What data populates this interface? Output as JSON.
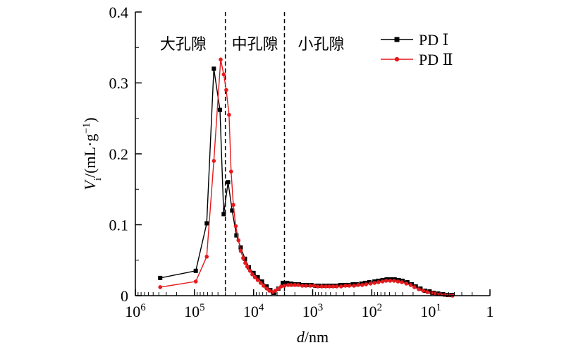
{
  "chart_data": {
    "type": "line",
    "x_scale": "log-reversed",
    "xlim": [
      1000000,
      1
    ],
    "ylim": [
      0,
      0.4
    ],
    "x_ticks": [
      {
        "label_base": "10",
        "label_exp": "6"
      },
      {
        "label_base": "10",
        "label_exp": "5"
      },
      {
        "label_base": "10",
        "label_exp": "4"
      },
      {
        "label_base": "10",
        "label_exp": "3"
      },
      {
        "label_base": "10",
        "label_exp": "2"
      },
      {
        "label_base": "10",
        "label_exp": "1"
      },
      {
        "label_base": "1",
        "label_exp": ""
      }
    ],
    "y_ticks": [
      "0",
      "0.1",
      "0.2",
      "0.3",
      "0.4"
    ],
    "xlabel": {
      "italic": "d",
      "rest": "/nm"
    },
    "ylabel": {
      "italic": "V",
      "sub": "i",
      "rest": "/(mL·g",
      "sup": "−1",
      "close": ")"
    },
    "boundaries": [
      30000,
      3000
    ],
    "regions": [
      "大孔隙",
      "中孔隙",
      "小孔隙"
    ],
    "series": [
      {
        "name": "PD Ⅰ",
        "color": "#000000",
        "marker": "square",
        "points": [
          [
            380000,
            0.025
          ],
          [
            95000,
            0.035
          ],
          [
            62000,
            0.102
          ],
          [
            47000,
            0.32
          ],
          [
            37000,
            0.262
          ],
          [
            32000,
            0.115
          ],
          [
            27000,
            0.16
          ],
          [
            23000,
            0.12
          ],
          [
            19500,
            0.085
          ],
          [
            16500,
            0.068
          ],
          [
            14000,
            0.052
          ],
          [
            12000,
            0.04
          ],
          [
            10000,
            0.032
          ],
          [
            8500,
            0.026
          ],
          [
            7200,
            0.02
          ],
          [
            6000,
            0.013
          ],
          [
            5200,
            0.008
          ],
          [
            4500,
            0.004
          ],
          [
            3800,
            0.01
          ],
          [
            3200,
            0.018
          ],
          [
            2700,
            0.018
          ],
          [
            2300,
            0.017
          ],
          [
            2000,
            0.016
          ],
          [
            1700,
            0.016
          ],
          [
            1450,
            0.015
          ],
          [
            1250,
            0.015
          ],
          [
            1050,
            0.015
          ],
          [
            900,
            0.014
          ],
          [
            780,
            0.014
          ],
          [
            650,
            0.014
          ],
          [
            550,
            0.014
          ],
          [
            470,
            0.014
          ],
          [
            400,
            0.014
          ],
          [
            340,
            0.015
          ],
          [
            290,
            0.015
          ],
          [
            250,
            0.015
          ],
          [
            210,
            0.016
          ],
          [
            180,
            0.016
          ],
          [
            150,
            0.017
          ],
          [
            130,
            0.018
          ],
          [
            110,
            0.019
          ],
          [
            90,
            0.02
          ],
          [
            78,
            0.021
          ],
          [
            66,
            0.022
          ],
          [
            56,
            0.023
          ],
          [
            48,
            0.023
          ],
          [
            41,
            0.023
          ],
          [
            35,
            0.022
          ],
          [
            30,
            0.021
          ],
          [
            25,
            0.019
          ],
          [
            21,
            0.016
          ],
          [
            18,
            0.013
          ],
          [
            15,
            0.01
          ],
          [
            12.5,
            0.007
          ],
          [
            10.5,
            0.006
          ],
          [
            9,
            0.004
          ],
          [
            7.5,
            0.003
          ],
          [
            6.2,
            0.002
          ],
          [
            5.2,
            0.001
          ],
          [
            4.4,
            0.001
          ]
        ]
      },
      {
        "name": "PD Ⅱ",
        "color": "#e5191c",
        "marker": "circle",
        "points": [
          [
            380000,
            0.012
          ],
          [
            95000,
            0.02
          ],
          [
            62000,
            0.055
          ],
          [
            47000,
            0.19
          ],
          [
            36000,
            0.333
          ],
          [
            32000,
            0.312
          ],
          [
            29000,
            0.29
          ],
          [
            26000,
            0.255
          ],
          [
            24000,
            0.175
          ],
          [
            22000,
            0.128
          ],
          [
            20000,
            0.098
          ],
          [
            18000,
            0.078
          ],
          [
            16500,
            0.063
          ],
          [
            15000,
            0.053
          ],
          [
            13800,
            0.046
          ],
          [
            12800,
            0.041
          ],
          [
            11500,
            0.035
          ],
          [
            10500,
            0.03
          ],
          [
            9500,
            0.026
          ],
          [
            8500,
            0.022
          ],
          [
            7600,
            0.018
          ],
          [
            6800,
            0.014
          ],
          [
            6000,
            0.01
          ],
          [
            5400,
            0.007
          ],
          [
            4800,
            0.005
          ],
          [
            4300,
            0.007
          ],
          [
            3800,
            0.01
          ],
          [
            3400,
            0.013
          ],
          [
            3000,
            0.014
          ],
          [
            2600,
            0.015
          ],
          [
            2300,
            0.015
          ],
          [
            2000,
            0.015
          ],
          [
            1750,
            0.015
          ],
          [
            1500,
            0.014
          ],
          [
            1300,
            0.014
          ],
          [
            1100,
            0.014
          ],
          [
            950,
            0.014
          ],
          [
            820,
            0.013
          ],
          [
            700,
            0.013
          ],
          [
            600,
            0.013
          ],
          [
            520,
            0.013
          ],
          [
            450,
            0.013
          ],
          [
            390,
            0.013
          ],
          [
            330,
            0.013
          ],
          [
            280,
            0.014
          ],
          [
            240,
            0.014
          ],
          [
            200,
            0.014
          ],
          [
            170,
            0.015
          ],
          [
            145,
            0.015
          ],
          [
            125,
            0.016
          ],
          [
            105,
            0.017
          ],
          [
            90,
            0.018
          ],
          [
            77,
            0.019
          ],
          [
            66,
            0.02
          ],
          [
            57,
            0.021
          ],
          [
            49,
            0.021
          ],
          [
            42,
            0.021
          ],
          [
            36,
            0.02
          ],
          [
            31,
            0.019
          ],
          [
            26,
            0.017
          ],
          [
            22,
            0.015
          ],
          [
            19,
            0.012
          ],
          [
            16,
            0.009
          ],
          [
            13.5,
            0.007
          ],
          [
            11.5,
            0.005
          ],
          [
            9.8,
            0.004
          ],
          [
            8.3,
            0.003
          ],
          [
            7,
            0.002
          ],
          [
            6,
            0.001
          ],
          [
            5,
            0.001
          ],
          [
            4.3,
            0.0
          ]
        ]
      }
    ],
    "legend_position": "top-right"
  }
}
